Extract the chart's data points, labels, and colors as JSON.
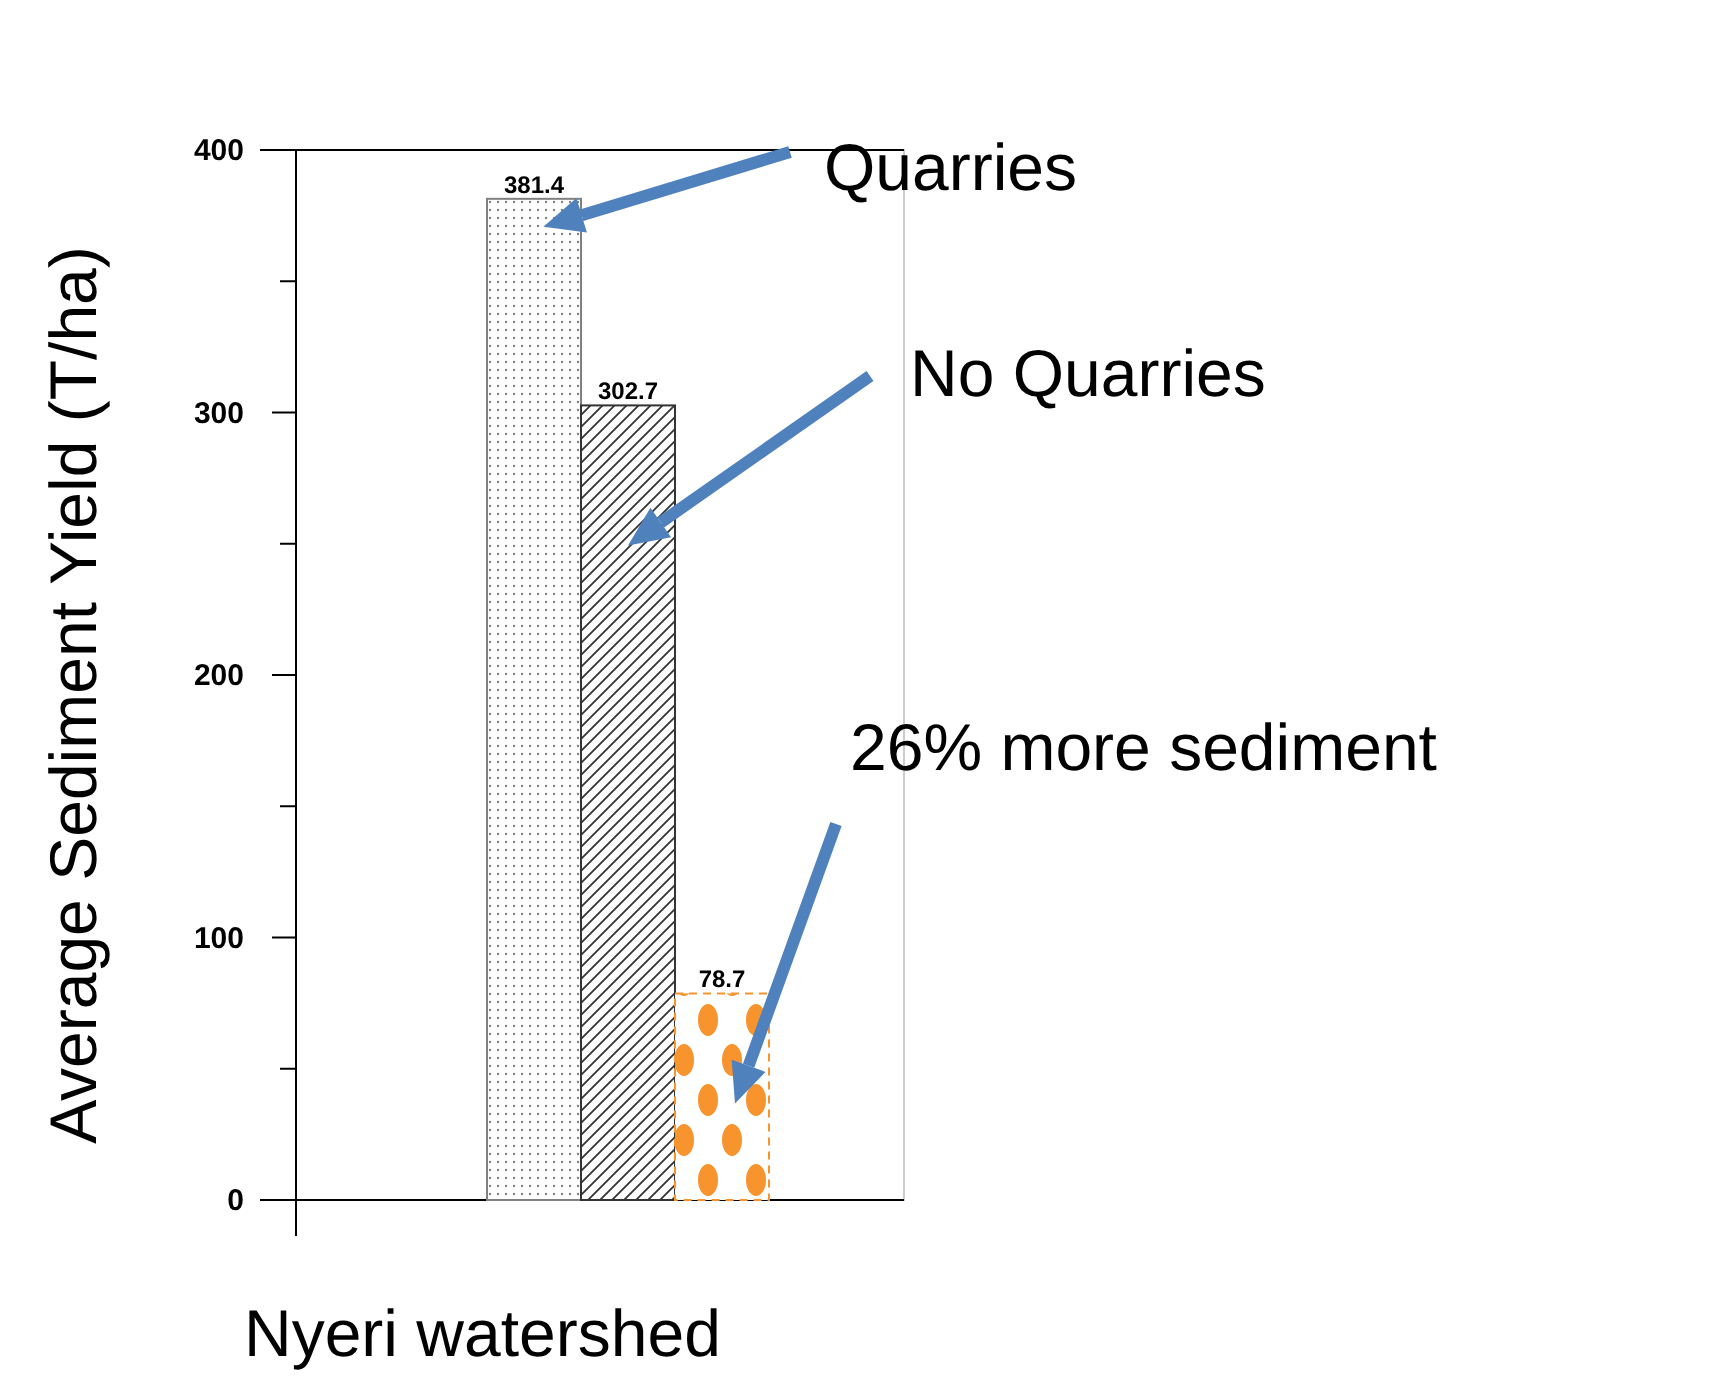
{
  "chart_data": {
    "type": "bar",
    "categories": [
      null
    ],
    "xlabel": "Nyeri watershed",
    "ylabel": "Average Sediment Yield (T/ha)",
    "series": [
      {
        "name": "Quarries",
        "color": "#808080",
        "values": [
          381.4
        ]
      },
      {
        "name": "No Quarries",
        "color": "#333333",
        "values": [
          302.7
        ]
      },
      {
        "color": "#f7942e",
        "values": [
          78.7
        ]
      }
    ],
    "annotations": [
      "26% more sediment"
    ],
    "ylim": [
      0,
      400
    ],
    "yticks": [
      0,
      {
        "value": 50,
        "label": null
      },
      100,
      {
        "value": 150,
        "label": null
      },
      200,
      {
        "value": 250,
        "label": null
      },
      300,
      {
        "value": 350,
        "label": null
      },
      400
    ],
    "data_labels": true
  }
}
